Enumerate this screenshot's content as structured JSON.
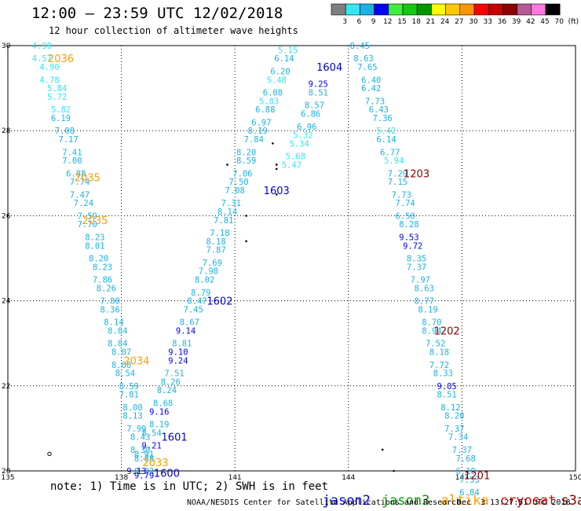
{
  "title": "12:00 – 23:59 UTC 12/02/2018",
  "subtitle": "12 hour collection of altimeter wave heights",
  "note": "note: 1) Time is in UTC; 2) SWH is in feet",
  "footer": "NOAA/NESDIS Center for Satellite Applications and Research",
  "timestamp": "Dec  3 13:27:51 UTC 2018",
  "colorbar": {
    "labels": [
      "3",
      "6",
      "9",
      "12",
      "15",
      "18",
      "21",
      "24",
      "27",
      "30",
      "33",
      "36",
      "39",
      "42",
      "45",
      "70",
      "(ft)"
    ],
    "colors": [
      "#7f7f7f",
      "#33e6f0",
      "#1ab2e6",
      "#0000ff",
      "#3ef03e",
      "#14c814",
      "#009600",
      "#ffff00",
      "#ffc800",
      "#ff9600",
      "#ff0000",
      "#c80000",
      "#8c0000",
      "#b45a96",
      "#ff78dc",
      "#000000"
    ]
  },
  "legend": [
    {
      "label": "jason2",
      "color": "#0000ff"
    },
    {
      "label": "jason3",
      "color": "#00a000"
    },
    {
      "label": "altika",
      "color": "#ff9b00"
    },
    {
      "label": "cryosat",
      "color": "#e00000"
    },
    {
      "label": "s3a",
      "color": "#8a0000"
    }
  ],
  "chart_data": {
    "type": "scatter",
    "xlim": [
      135,
      150
    ],
    "ylim": [
      20,
      30
    ],
    "x_ticks": [
      135,
      138,
      141,
      144,
      147,
      150
    ],
    "y_ticks": [
      20,
      22,
      24,
      26,
      28,
      30
    ],
    "grid": true,
    "colors": {
      "low": "#33e6f0",
      "mid": "#1ab2e6",
      "high": "#0000ff"
    },
    "tracks": [
      {
        "satellite": "altika",
        "points": [
          [
            135.9,
            30.0,
            "4.90"
          ],
          [
            135.9,
            29.7,
            "4.57"
          ],
          [
            136.1,
            29.5,
            "4.90"
          ],
          [
            136.1,
            29.2,
            "4.78"
          ],
          [
            136.3,
            29.0,
            "5.84"
          ],
          [
            136.3,
            28.8,
            "5.72"
          ],
          [
            136.4,
            28.5,
            "5.82"
          ],
          [
            136.4,
            28.3,
            "6.19"
          ],
          [
            136.5,
            28.0,
            "7.08"
          ],
          [
            136.6,
            27.8,
            "7.17"
          ],
          [
            136.7,
            27.5,
            "7.41"
          ],
          [
            136.7,
            27.3,
            "7.00"
          ],
          [
            136.8,
            27.0,
            "6.88"
          ],
          [
            136.9,
            26.8,
            "7.74"
          ],
          [
            136.9,
            26.5,
            "7.47"
          ],
          [
            137.0,
            26.3,
            "7.24"
          ],
          [
            137.1,
            26.0,
            "7.59"
          ],
          [
            137.1,
            25.8,
            "7.70"
          ],
          [
            137.3,
            25.5,
            "8.23"
          ],
          [
            137.3,
            25.3,
            "8.01"
          ],
          [
            137.4,
            25.0,
            "8.20"
          ],
          [
            137.5,
            24.8,
            "8.23"
          ],
          [
            137.5,
            24.5,
            "7.86"
          ],
          [
            137.6,
            24.3,
            "8.26"
          ],
          [
            137.7,
            24.0,
            "7.80"
          ],
          [
            137.7,
            23.8,
            "8.36"
          ],
          [
            137.8,
            23.5,
            "8.14"
          ],
          [
            137.9,
            23.3,
            "8.84"
          ],
          [
            137.9,
            23.0,
            "8.84"
          ],
          [
            138.0,
            22.8,
            "8.07"
          ],
          [
            138.0,
            22.5,
            "8.00"
          ],
          [
            138.1,
            22.3,
            "8.54"
          ],
          [
            138.2,
            22.0,
            "8.59"
          ],
          [
            138.2,
            21.8,
            "7.81"
          ],
          [
            138.3,
            21.5,
            "8.00"
          ],
          [
            138.3,
            21.3,
            "8.13"
          ],
          [
            138.4,
            21.0,
            "7.99"
          ],
          [
            138.5,
            20.8,
            "8.43"
          ],
          [
            138.5,
            20.5,
            "8.30"
          ],
          [
            138.6,
            20.3,
            "8.88"
          ],
          [
            138.6,
            20.0,
            "8.83"
          ]
        ]
      },
      {
        "satellite": "jason2",
        "points": [
          [
            138.6,
            20.4,
            "8.91"
          ],
          [
            138.8,
            20.6,
            "9.21"
          ],
          [
            138.8,
            20.9,
            "8.54"
          ],
          [
            139.0,
            21.1,
            "8.19"
          ],
          [
            139.0,
            21.4,
            "9.16"
          ],
          [
            139.1,
            21.6,
            "8.68"
          ],
          [
            139.2,
            21.9,
            "8.24"
          ],
          [
            139.3,
            22.1,
            "8.26"
          ],
          [
            139.4,
            22.3,
            "7.51"
          ],
          [
            139.5,
            22.6,
            "9.24"
          ],
          [
            139.5,
            22.8,
            "9.10"
          ],
          [
            139.6,
            23.0,
            "8.81"
          ],
          [
            139.7,
            23.3,
            "9.14"
          ],
          [
            139.8,
            23.5,
            "8.67"
          ],
          [
            139.9,
            23.8,
            "7.45"
          ],
          [
            140.0,
            24.0,
            "8.47"
          ],
          [
            140.1,
            24.2,
            "8.79"
          ],
          [
            140.2,
            24.5,
            "8.02"
          ],
          [
            140.3,
            24.7,
            "7.98"
          ],
          [
            140.4,
            24.9,
            "7.69"
          ],
          [
            140.5,
            25.2,
            "7.87"
          ],
          [
            140.5,
            25.4,
            "8.18"
          ],
          [
            140.6,
            25.6,
            "7.18"
          ],
          [
            140.7,
            25.9,
            "7.81"
          ],
          [
            140.8,
            26.1,
            "8.14"
          ],
          [
            140.9,
            26.3,
            "7.31"
          ],
          [
            141.0,
            26.6,
            "7.08"
          ],
          [
            141.1,
            26.8,
            "7.50"
          ],
          [
            141.2,
            27.0,
            "7.06"
          ],
          [
            141.3,
            27.3,
            "8.59"
          ],
          [
            141.3,
            27.5,
            "8.20"
          ],
          [
            141.5,
            27.8,
            "7.84"
          ],
          [
            141.6,
            28.0,
            "8.19"
          ],
          [
            141.7,
            28.2,
            "6.97"
          ],
          [
            141.8,
            28.5,
            "6.88"
          ],
          [
            141.9,
            28.7,
            "5.83"
          ],
          [
            142.0,
            28.9,
            "6.08"
          ],
          [
            142.1,
            29.2,
            "5.48"
          ],
          [
            142.2,
            29.4,
            "6.20"
          ],
          [
            142.3,
            29.7,
            "6.14"
          ],
          [
            142.4,
            29.9,
            "5.15"
          ]
        ]
      },
      {
        "satellite": "jason2",
        "points": [
          [
            142.5,
            27.2,
            "5.47"
          ],
          [
            142.6,
            27.4,
            "5.68"
          ],
          [
            142.7,
            27.7,
            "5.34"
          ],
          [
            142.8,
            27.9,
            "5.32"
          ],
          [
            142.9,
            28.1,
            "6.96"
          ],
          [
            143.0,
            28.4,
            "6.86"
          ],
          [
            143.1,
            28.6,
            "8.57"
          ],
          [
            143.2,
            28.9,
            "8.51"
          ],
          [
            143.2,
            29.1,
            "9.25"
          ]
        ]
      },
      {
        "satellite": "jason2",
        "points": [
          [
            144.3,
            30.0,
            "8.45"
          ],
          [
            144.4,
            29.7,
            "8.63"
          ],
          [
            144.5,
            29.5,
            "7.65"
          ],
          [
            144.6,
            29.2,
            "6.40"
          ],
          [
            144.6,
            29.0,
            "6.42"
          ],
          [
            144.7,
            28.7,
            "7.73"
          ],
          [
            144.8,
            28.5,
            "6.43"
          ],
          [
            144.9,
            28.3,
            "7.36"
          ],
          [
            145.0,
            28.0,
            "5.42"
          ],
          [
            145.0,
            27.8,
            "6.14"
          ],
          [
            145.1,
            27.5,
            "6.77"
          ],
          [
            145.2,
            27.3,
            "5.94"
          ],
          [
            145.3,
            27.0,
            "7.29"
          ],
          [
            145.3,
            26.8,
            "7.15"
          ],
          [
            145.4,
            26.5,
            "7.73"
          ],
          [
            145.5,
            26.3,
            "7.74"
          ],
          [
            145.5,
            26.0,
            "6.50"
          ],
          [
            145.6,
            25.8,
            "8.28"
          ],
          [
            145.6,
            25.5,
            "9.53"
          ],
          [
            145.7,
            25.3,
            "9.72"
          ],
          [
            145.8,
            25.0,
            "8.35"
          ],
          [
            145.8,
            24.8,
            "7.37"
          ],
          [
            145.9,
            24.5,
            "7.97"
          ],
          [
            146.0,
            24.3,
            "8.63"
          ],
          [
            146.0,
            24.0,
            "8.77"
          ],
          [
            146.1,
            23.8,
            "8.19"
          ],
          [
            146.2,
            23.5,
            "8.70"
          ],
          [
            146.2,
            23.3,
            "8.94"
          ],
          [
            146.3,
            23.0,
            "7.52"
          ],
          [
            146.4,
            22.8,
            "8.18"
          ],
          [
            146.4,
            22.5,
            "7.72"
          ],
          [
            146.5,
            22.3,
            "8.33"
          ],
          [
            146.6,
            22.0,
            "9.05"
          ],
          [
            146.6,
            21.8,
            "8.51"
          ],
          [
            146.7,
            21.5,
            "8.12"
          ],
          [
            146.8,
            21.3,
            "8.20"
          ],
          [
            146.8,
            21.0,
            "7.37"
          ],
          [
            146.9,
            20.8,
            "7.34"
          ],
          [
            147.0,
            20.5,
            "7.37"
          ],
          [
            147.1,
            20.3,
            "7.68"
          ],
          [
            147.1,
            20.0,
            "6.19"
          ],
          [
            147.2,
            19.8,
            "7.53"
          ],
          [
            147.2,
            19.5,
            "6.84"
          ]
        ]
      }
    ],
    "extra_points": [
      [
        138.4,
        20.0,
        "9.13"
      ],
      [
        138.6,
        19.9,
        "9.79"
      ]
    ],
    "orbit_labels": [
      {
        "text": "2036",
        "x": 136.4,
        "y": 29.7,
        "satellite": "altika"
      },
      {
        "text": "2035",
        "x": 137.1,
        "y": 26.9,
        "satellite": "altika"
      },
      {
        "text": "2035",
        "x": 137.3,
        "y": 25.9,
        "satellite": "altika"
      },
      {
        "text": "2034",
        "x": 138.4,
        "y": 22.6,
        "satellite": "altika"
      },
      {
        "text": "2033",
        "x": 138.9,
        "y": 20.2,
        "satellite": "altika"
      },
      {
        "text": "1604",
        "x": 143.5,
        "y": 29.5,
        "satellite": "jason2"
      },
      {
        "text": "1603",
        "x": 142.1,
        "y": 26.6,
        "satellite": "jason2"
      },
      {
        "text": "1602",
        "x": 140.6,
        "y": 24.0,
        "satellite": "jason2"
      },
      {
        "text": "1601",
        "x": 139.4,
        "y": 20.8,
        "satellite": "jason2"
      },
      {
        "text": "1600",
        "x": 139.2,
        "y": 19.95,
        "satellite": "jason2"
      },
      {
        "text": "1203",
        "x": 145.8,
        "y": 27.0,
        "satellite": "s3a"
      },
      {
        "text": "1202",
        "x": 146.6,
        "y": 23.3,
        "satellite": "s3a"
      },
      {
        "text": "1201",
        "x": 147.4,
        "y": 19.9,
        "satellite": "s3a"
      }
    ]
  }
}
